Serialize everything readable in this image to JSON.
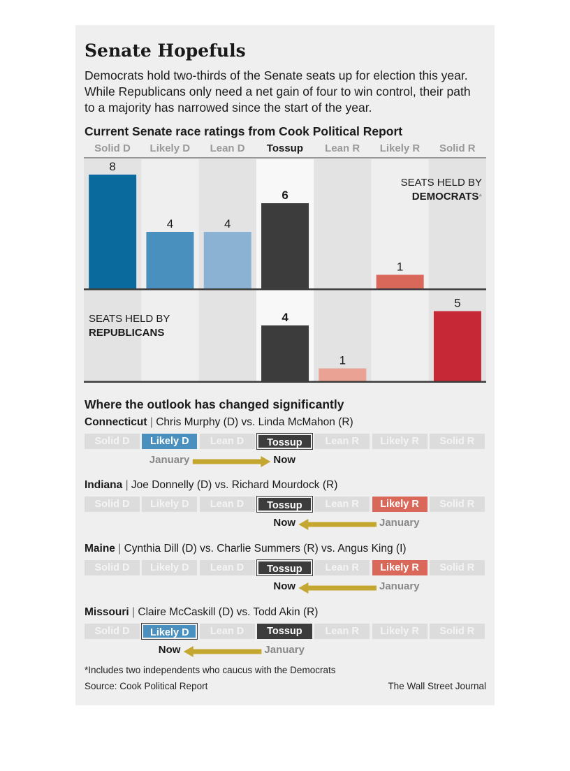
{
  "header": {
    "title": "Senate Hopefuls",
    "intro": "Democrats hold two-thirds of the Senate seats up for election this year. While Republicans only need a net gain of four to win control, their path to a majority has narrowed since the start of the year."
  },
  "chart_data": {
    "type": "bar",
    "title": "Current Senate race ratings from Cook Political Report",
    "categories": [
      "Solid D",
      "Likely D",
      "Lean D",
      "Tossup",
      "Lean R",
      "Likely R",
      "Solid R"
    ],
    "series": [
      {
        "name": "SEATS HELD BY DEMOCRATS*",
        "values": [
          8,
          4,
          4,
          6,
          0,
          1,
          0
        ]
      },
      {
        "name": "SEATS HELD BY REPUBLICANS",
        "values": [
          0,
          0,
          0,
          4,
          1,
          0,
          5
        ]
      }
    ],
    "labels": [
      "8",
      "4",
      "4",
      "6",
      "1",
      "4",
      "1",
      "5"
    ],
    "dem_label": {
      "line1": "SEATS HELD BY",
      "line2": "DEMOCRATS",
      "mark": "*"
    },
    "rep_label": {
      "line1": "SEATS HELD BY",
      "line2": "REPUBLICANS"
    },
    "colors": {
      "dem": [
        "#0a6a9e",
        "#4a90bf",
        "#8cb2d3",
        "#3c3c3c",
        "#f1a89a",
        "#d9675a",
        "#c72836"
      ],
      "rep": [
        "#0a6a9e",
        "#4a90bf",
        "#8cb2d3",
        "#3c3c3c",
        "#e9a294",
        "#d9675a",
        "#c72836"
      ]
    }
  },
  "changes": {
    "title": "Where the outlook has changed significantly",
    "pill_labels": [
      "Solid D",
      "Likely D",
      "Lean D",
      "Tossup",
      "Lean R",
      "Likely R",
      "Solid R"
    ],
    "from_label": "January",
    "to_label": "Now",
    "races": [
      {
        "state": "Connecticut",
        "candidates": "Chris Murphy (D) vs. Linda McMahon (R)",
        "january": "Likely D",
        "now": "Tossup"
      },
      {
        "state": "Indiana",
        "candidates": "Joe Donnelly (D) vs. Richard Mourdock (R)",
        "january": "Likely R",
        "now": "Tossup"
      },
      {
        "state": "Maine",
        "candidates": "Cynthia Dill (D) vs. Charlie Summers (R) vs. Angus King (I)",
        "january": "Likely R",
        "now": "Tossup"
      },
      {
        "state": "Missouri",
        "candidates": "Claire McCaskill (D) vs. Todd Akin (R)",
        "january": "Tossup",
        "now": "Likely D"
      }
    ]
  },
  "footer": {
    "footnote": "*Includes two independents who caucus with the Democrats",
    "source": "Source: Cook Political Report",
    "credit": "The Wall Street Journal"
  }
}
